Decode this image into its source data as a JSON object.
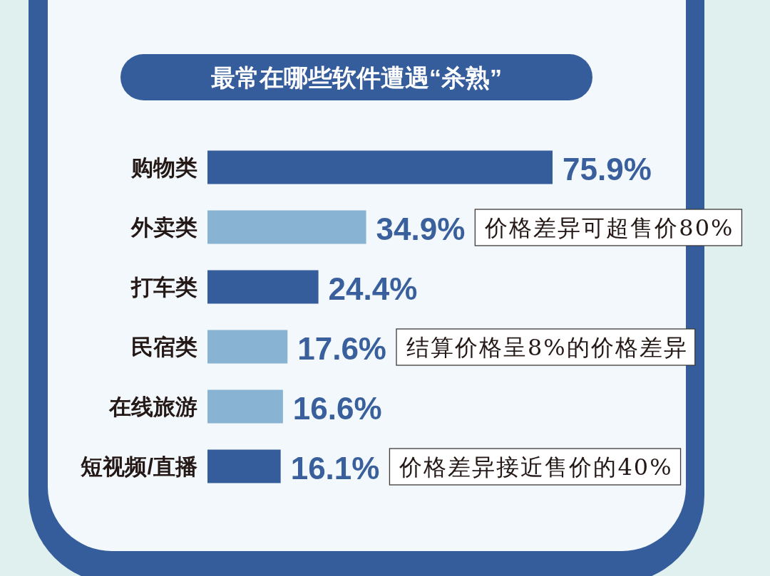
{
  "chart_data": {
    "type": "bar",
    "orientation": "horizontal",
    "title": "最常在哪些软件遭遇“杀熟”",
    "categories": [
      "购物类",
      "外卖类",
      "打车类",
      "民宿类",
      "在线旅游",
      "短视频/直播"
    ],
    "values": [
      75.9,
      34.9,
      24.4,
      17.6,
      16.6,
      16.1
    ],
    "colors": [
      "#365d9b",
      "#88b3d3",
      "#365d9b",
      "#88b3d3",
      "#88b3d3",
      "#365d9b"
    ],
    "value_labels": [
      "75.9%",
      "34.9%",
      "24.4%",
      "17.6%",
      "16.6%",
      "16.1%"
    ],
    "tick_labels": "y",
    "annotations": [
      "价格差异可超售价80%",
      "结算价格呈8%的价格差异",
      "价格差异接近售价的40%"
    ]
  }
}
